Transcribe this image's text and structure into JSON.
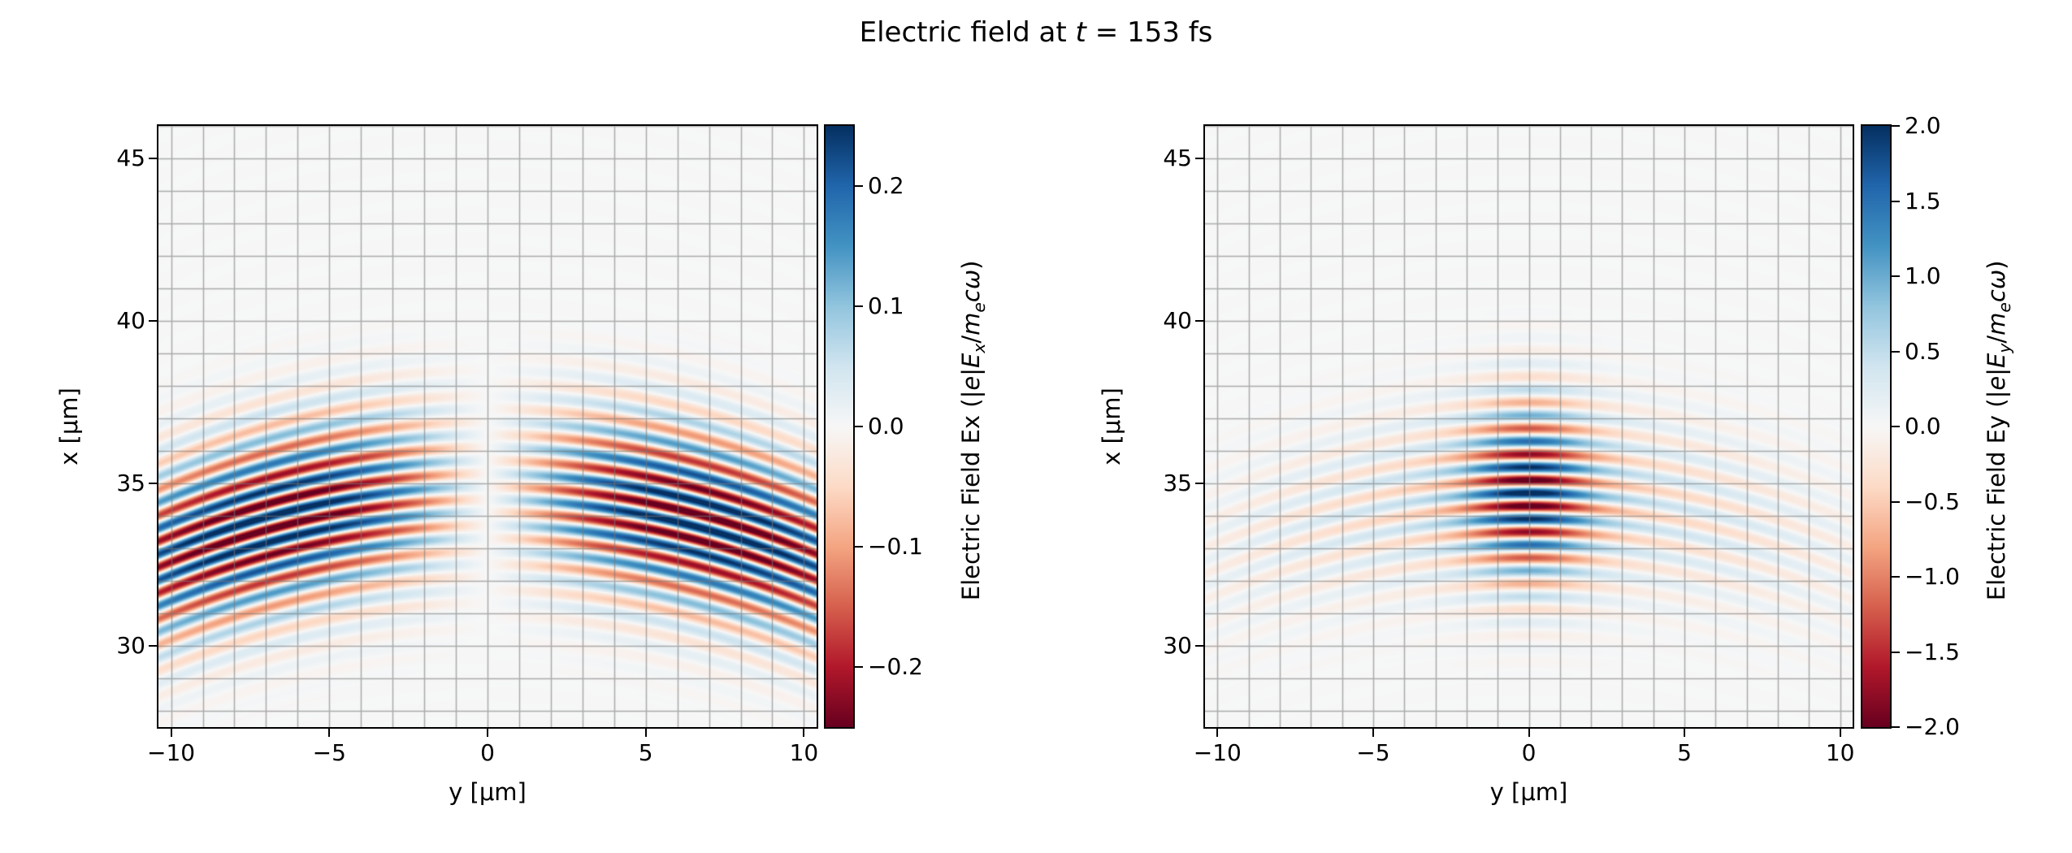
{
  "title_text": "Electric field at t = 153 fs",
  "title_segments": [
    {
      "t": "Electric field at "
    },
    {
      "t": "t",
      "i": true
    },
    {
      "t": " = 153 fs"
    }
  ],
  "colormap": {
    "name": "RdBu",
    "anchors": [
      "#67001f",
      "#b2182b",
      "#d6604d",
      "#f4a582",
      "#fddbc7",
      "#f7f7f7",
      "#d1e5f0",
      "#92c5de",
      "#4393c3",
      "#2166ac",
      "#053061"
    ]
  },
  "axis_color": "#000000",
  "grid_color": "rgba(120,120,120,0.6)",
  "chart_data": [
    {
      "type": "heatmap",
      "component": "Ex",
      "xlabel": "y [μm]",
      "ylabel": "x [μm]",
      "xlim": [
        -10.4,
        10.4
      ],
      "ylim": [
        27.5,
        46.0
      ],
      "grid_step": 1,
      "xticks": [
        {
          "v": -10,
          "label": "−10"
        },
        {
          "v": -5,
          "label": "−5"
        },
        {
          "v": 0,
          "label": "0"
        },
        {
          "v": 5,
          "label": "5"
        },
        {
          "v": 10,
          "label": "10"
        }
      ],
      "yticks": [
        {
          "v": 30,
          "label": "30"
        },
        {
          "v": 35,
          "label": "35"
        },
        {
          "v": 40,
          "label": "40"
        },
        {
          "v": 45,
          "label": "45"
        }
      ],
      "clim": [
        -0.25,
        0.25
      ],
      "colorbar": {
        "label_text": "Electric Field Ex (|e|Ex/mecω)",
        "label_segments": [
          {
            "t": "Electric Field Ex (|"
          },
          {
            "t": "e",
            "i": true
          },
          {
            "t": "|"
          },
          {
            "t": "E",
            "i": true
          },
          {
            "t": "x",
            "i": true,
            "sub": true
          },
          {
            "t": "/"
          },
          {
            "t": "m",
            "i": true
          },
          {
            "t": "e",
            "i": true,
            "sub": true
          },
          {
            "t": "c",
            "i": true
          },
          {
            "t": "ω",
            "i": true
          },
          {
            "t": ")"
          }
        ],
        "ticks": [
          {
            "v": 0.2,
            "label": "0.2"
          },
          {
            "v": 0.1,
            "label": "0.1"
          },
          {
            "v": 0.0,
            "label": "0.0"
          },
          {
            "v": -0.1,
            "label": "−0.1"
          },
          {
            "v": -0.2,
            "label": "−0.2"
          }
        ]
      },
      "field_model": {
        "kind": "longitudinal",
        "amplitude": 0.29,
        "wavelength": 0.8,
        "pulse_center": 34.7,
        "pulse_sigma": 1.85,
        "wavefront_curvature_R": 26,
        "lobe_position": 6.8,
        "phase_offset": 1.5708
      }
    },
    {
      "type": "heatmap",
      "component": "Ey",
      "xlabel": "y [μm]",
      "ylabel": "x [μm]",
      "xlim": [
        -10.4,
        10.4
      ],
      "ylim": [
        27.5,
        46.0
      ],
      "grid_step": 1,
      "xticks": [
        {
          "v": -10,
          "label": "−10"
        },
        {
          "v": -5,
          "label": "−5"
        },
        {
          "v": 0,
          "label": "0"
        },
        {
          "v": 5,
          "label": "5"
        },
        {
          "v": 10,
          "label": "10"
        }
      ],
      "yticks": [
        {
          "v": 30,
          "label": "30"
        },
        {
          "v": 35,
          "label": "35"
        },
        {
          "v": 40,
          "label": "40"
        },
        {
          "v": 45,
          "label": "45"
        }
      ],
      "clim": [
        -2.0,
        2.0
      ],
      "colorbar": {
        "label_text": "Electric Field Ey (|e|Ey/mecω)",
        "label_segments": [
          {
            "t": "Electric Field Ey (|"
          },
          {
            "t": "e",
            "i": true
          },
          {
            "t": "|"
          },
          {
            "t": "E",
            "i": true
          },
          {
            "t": "y",
            "i": true,
            "sub": true
          },
          {
            "t": "/"
          },
          {
            "t": "m",
            "i": true
          },
          {
            "t": "e",
            "i": true,
            "sub": true
          },
          {
            "t": "c",
            "i": true
          },
          {
            "t": "ω",
            "i": true
          },
          {
            "t": ")"
          }
        ],
        "ticks": [
          {
            "v": 2.0,
            "label": "2.0"
          },
          {
            "v": 1.5,
            "label": "1.5"
          },
          {
            "v": 1.0,
            "label": "1.0"
          },
          {
            "v": 0.5,
            "label": "0.5"
          },
          {
            "v": 0.0,
            "label": "0.0"
          },
          {
            "v": -0.5,
            "label": "−0.5"
          },
          {
            "v": -1.0,
            "label": "−1.0"
          },
          {
            "v": -1.5,
            "label": "−1.5"
          },
          {
            "v": -2.0,
            "label": "−2.0"
          }
        ]
      },
      "field_model": {
        "kind": "transverse",
        "amplitude": 1.65,
        "wavelength": 0.8,
        "pulse_center": 34.7,
        "pulse_sigma": 1.85,
        "wavefront_curvature_R": 26,
        "waist": 1.9,
        "wing_amplitude": 0.35,
        "wing_waist": 9.0,
        "phase_offset": 0
      }
    }
  ]
}
